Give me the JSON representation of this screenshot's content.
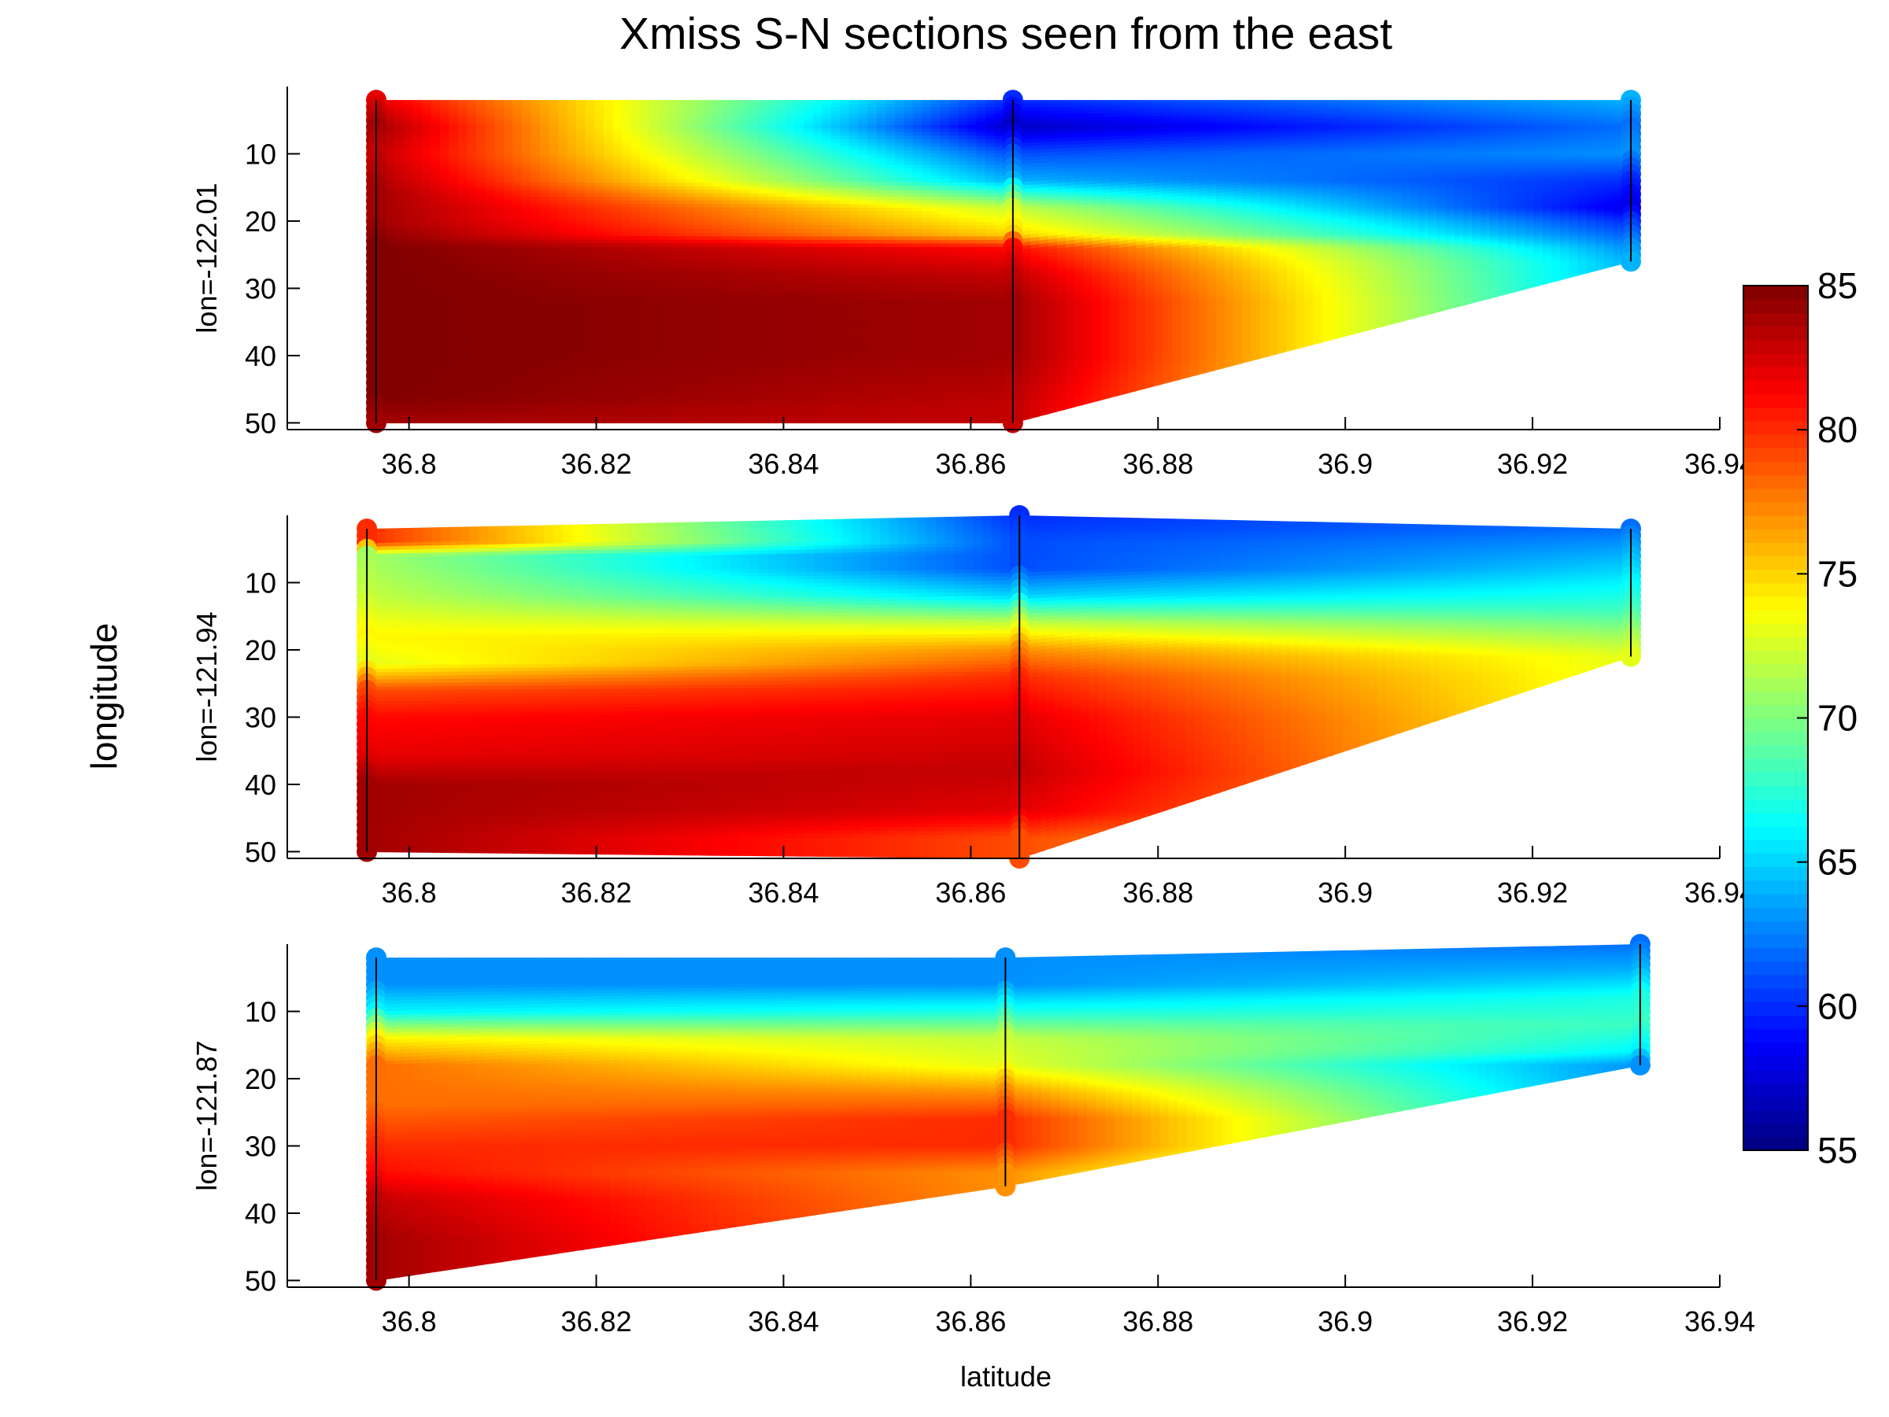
{
  "chart_data": {
    "type": "heatmap",
    "title": "Xmiss S-N sections seen from the east",
    "ylabel_outer": "longitude",
    "xlabel": "latitude",
    "colorbar": {
      "colormap": "jet",
      "range": [
        55,
        85
      ],
      "ticks": [
        "55",
        "60",
        "65",
        "70",
        "75",
        "80",
        "85"
      ],
      "placement": "right"
    },
    "xlim": [
      36.787,
      36.94
    ],
    "xticks": [
      "36.8",
      "36.82",
      "36.84",
      "36.86",
      "36.88",
      "36.9",
      "36.92",
      "36.94"
    ],
    "ylim": [
      0,
      51
    ],
    "yticks": [
      "10",
      "20",
      "30",
      "40",
      "50"
    ],
    "y_reversed": true,
    "panels": [
      {
        "ylabel": "lon=-122.01",
        "stations": [
          {
            "lat": 36.7965,
            "profile": [
              [
                2,
                82
              ],
              [
                6,
                84
              ],
              [
                10,
                83
              ],
              [
                16,
                84
              ],
              [
                20,
                84
              ],
              [
                24,
                85
              ],
              [
                30,
                85
              ],
              [
                36,
                85
              ],
              [
                40,
                85
              ],
              [
                46,
                85
              ],
              [
                50,
                84
              ]
            ]
          },
          {
            "lat": 36.8645,
            "profile": [
              [
                2,
                60
              ],
              [
                6,
                57
              ],
              [
                10,
                61
              ],
              [
                14,
                64
              ],
              [
                18,
                72
              ],
              [
                22,
                75
              ],
              [
                24,
                81
              ],
              [
                28,
                83
              ],
              [
                32,
                84
              ],
              [
                40,
                84
              ],
              [
                48,
                83
              ],
              [
                50,
                83
              ]
            ]
          },
          {
            "lat": 36.9305,
            "profile": [
              [
                2,
                64
              ],
              [
                6,
                62
              ],
              [
                10,
                63
              ],
              [
                14,
                60
              ],
              [
                18,
                58
              ],
              [
                20,
                60
              ],
              [
                24,
                63
              ],
              [
                26,
                64
              ]
            ]
          }
        ]
      },
      {
        "ylabel": "lon=-121.94",
        "stations": [
          {
            "lat": 36.7955,
            "profile": [
              [
                2,
                80
              ],
              [
                4,
                80
              ],
              [
                6,
                71
              ],
              [
                12,
                72
              ],
              [
                18,
                74
              ],
              [
                22,
                73
              ],
              [
                26,
                79
              ],
              [
                30,
                81
              ],
              [
                36,
                82
              ],
              [
                40,
                84
              ],
              [
                44,
                84
              ],
              [
                50,
                84
              ]
            ]
          },
          {
            "lat": 36.8652,
            "profile": [
              [
                0,
                60
              ],
              [
                4,
                61
              ],
              [
                8,
                61
              ],
              [
                12,
                65
              ],
              [
                16,
                72
              ],
              [
                20,
                77
              ],
              [
                24,
                80
              ],
              [
                30,
                82
              ],
              [
                38,
                83
              ],
              [
                44,
                82
              ],
              [
                48,
                79
              ],
              [
                51,
                79
              ]
            ]
          },
          {
            "lat": 36.9305,
            "profile": [
              [
                2,
                62
              ],
              [
                6,
                64
              ],
              [
                10,
                66
              ],
              [
                14,
                68
              ],
              [
                18,
                71
              ],
              [
                21,
                73
              ]
            ]
          }
        ]
      },
      {
        "ylabel": "lon=-121.87",
        "stations": [
          {
            "lat": 36.7965,
            "profile": [
              [
                2,
                63
              ],
              [
                6,
                63
              ],
              [
                10,
                66
              ],
              [
                14,
                74
              ],
              [
                18,
                78
              ],
              [
                24,
                78
              ],
              [
                30,
                80
              ],
              [
                34,
                81
              ],
              [
                38,
                83
              ],
              [
                44,
                84
              ],
              [
                50,
                84
              ]
            ]
          },
          {
            "lat": 36.8637,
            "profile": [
              [
                2,
                63
              ],
              [
                6,
                63
              ],
              [
                10,
                67
              ],
              [
                14,
                72
              ],
              [
                18,
                73
              ],
              [
                22,
                77
              ],
              [
                26,
                80
              ],
              [
                30,
                80
              ],
              [
                34,
                77
              ],
              [
                36,
                77
              ]
            ]
          },
          {
            "lat": 36.9315,
            "profile": [
              [
                0,
                62
              ],
              [
                4,
                64
              ],
              [
                8,
                67
              ],
              [
                12,
                68
              ],
              [
                16,
                66
              ],
              [
                18,
                63
              ]
            ]
          }
        ]
      }
    ]
  }
}
